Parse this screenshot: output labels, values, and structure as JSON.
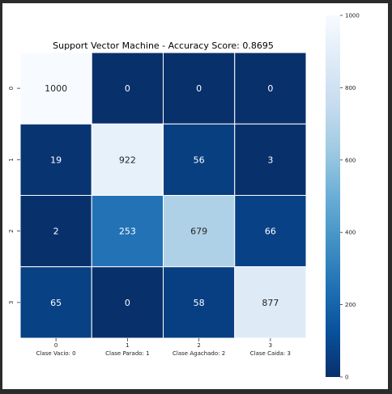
{
  "chart_data": {
    "type": "heatmap",
    "title": "Support Vector Machine - Accuracy Score: 0.8695",
    "rows": [
      "0",
      "1",
      "2",
      "3"
    ],
    "x_tick_numbers": [
      "0",
      "1",
      "2",
      "3"
    ],
    "x_tick_labels": [
      "Clase Vacio: 0",
      "Clase Parado: 1",
      "Clase Agachado: 2",
      "Clase Caida: 3"
    ],
    "values": [
      [
        1000,
        0,
        0,
        0
      ],
      [
        19,
        922,
        56,
        3
      ],
      [
        2,
        253,
        679,
        66
      ],
      [
        65,
        0,
        58,
        877
      ]
    ],
    "colorbar": {
      "min": 0,
      "max": 1000,
      "ticks": [
        "0",
        "200",
        "400",
        "600",
        "800",
        "1000"
      ],
      "tick_values": [
        0,
        200,
        400,
        600,
        800,
        1000
      ]
    },
    "colormap": "Blues_r",
    "color_stops": [
      "#08306b",
      "#08519c",
      "#2171b5",
      "#4292c6",
      "#6baed6",
      "#9ecae1",
      "#c6dbef",
      "#deebf7",
      "#f7fbff"
    ],
    "grid_line_color": "#ffffff"
  }
}
